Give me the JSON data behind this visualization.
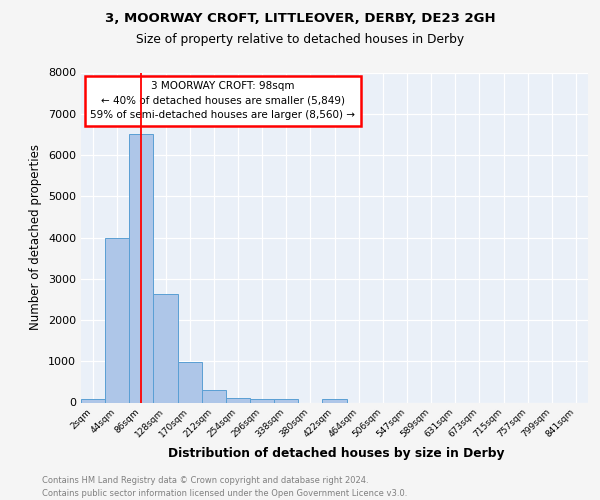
{
  "title1": "3, MOORWAY CROFT, LITTLEOVER, DERBY, DE23 2GH",
  "title2": "Size of property relative to detached houses in Derby",
  "xlabel": "Distribution of detached houses by size in Derby",
  "ylabel": "Number of detached properties",
  "bins": [
    "2sqm",
    "44sqm",
    "86sqm",
    "128sqm",
    "170sqm",
    "212sqm",
    "254sqm",
    "296sqm",
    "338sqm",
    "380sqm",
    "422sqm",
    "464sqm",
    "506sqm",
    "547sqm",
    "589sqm",
    "631sqm",
    "673sqm",
    "715sqm",
    "757sqm",
    "799sqm",
    "841sqm"
  ],
  "values": [
    80,
    4000,
    6500,
    2620,
    970,
    310,
    120,
    95,
    95,
    0,
    80,
    0,
    0,
    0,
    0,
    0,
    0,
    0,
    0,
    0,
    0
  ],
  "bar_color": "#aec6e8",
  "bar_edge_color": "#5a9fd4",
  "red_line_x": 2,
  "annotation_title": "3 MOORWAY CROFT: 98sqm",
  "annotation_line1": "← 40% of detached houses are smaller (5,849)",
  "annotation_line2": "59% of semi-detached houses are larger (8,560) →",
  "footer1": "Contains HM Land Registry data © Crown copyright and database right 2024.",
  "footer2": "Contains public sector information licensed under the Open Government Licence v3.0.",
  "ylim": [
    0,
    8000
  ],
  "yticks": [
    0,
    1000,
    2000,
    3000,
    4000,
    5000,
    6000,
    7000,
    8000
  ],
  "plot_bg_color": "#eaf0f8",
  "fig_bg_color": "#f5f5f5"
}
